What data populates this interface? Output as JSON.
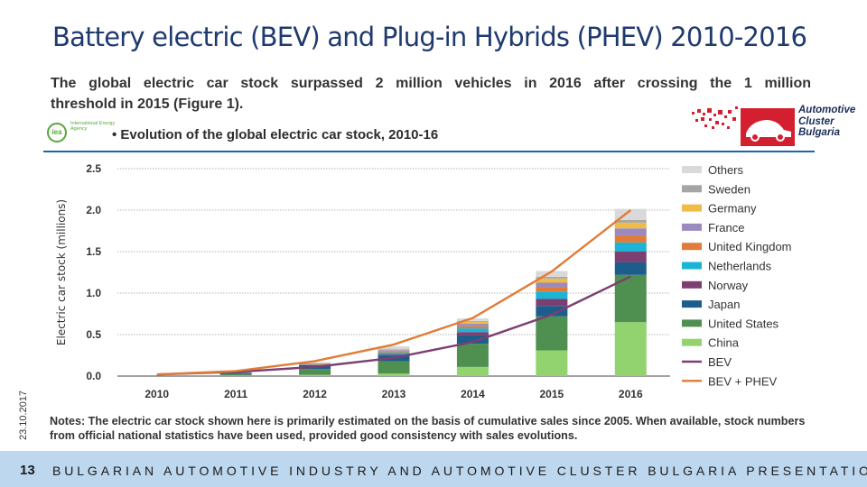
{
  "slide": {
    "title": "Battery electric (BEV) and Plug-in Hybrids (PHEV) 2010-2016",
    "intro_line1": "The global electric car stock surpassed 2 million vehicles in 2016 after crossing the 1 million",
    "intro_line2": "threshold in 2015 (Figure 1).",
    "figure_title": "• Evolution of the global electric car stock, 2010-16",
    "iea_logo": {
      "icon": "iea-logo",
      "mark": "iea",
      "text": "International Energy Agency"
    },
    "brand_logo": {
      "icon": "automotive-cluster-car-logo",
      "line1": "Automotive",
      "line2": "Cluster",
      "line3": "Bulgaria"
    },
    "date": "23.10.2017",
    "notes": "Notes: The electric car stock shown here is primarily estimated on the basis of cumulative sales since 2005. When available, stock numbers from official national statistics have been used, provided good consistency with sales evolutions.",
    "footer_number": "13",
    "footer_text": "BULGARIAN AUTOMOTIVE INDUSTRY AND AUTOMOTIVE CLUSTER BULGARIA PRESENTATION",
    "colors": {
      "title": "#1f3a6e",
      "rule": "#1b64b0",
      "footer_bg": "#bdd7ee"
    }
  },
  "chart_data": {
    "type": "bar",
    "stacked": true,
    "title": "Evolution of the global electric car stock, 2010-16",
    "ylabel": "Electric car stock (millions)",
    "xlabel": "",
    "categories": [
      "2010",
      "2011",
      "2012",
      "2013",
      "2014",
      "2015",
      "2016"
    ],
    "ylim": [
      0,
      2.5
    ],
    "yticks": [
      "0.0",
      "0.5",
      "1.0",
      "1.5",
      "2.0",
      "2.5"
    ],
    "grid": true,
    "legend_position": "right",
    "series": [
      {
        "name": "China",
        "color": "#92d26f",
        "values": [
          0.002,
          0.007,
          0.015,
          0.03,
          0.11,
          0.31,
          0.65
        ]
      },
      {
        "name": "United States",
        "color": "#4f8f4f",
        "values": [
          0.003,
          0.018,
          0.07,
          0.15,
          0.28,
          0.41,
          0.57
        ]
      },
      {
        "name": "Japan",
        "color": "#1d5d8c",
        "values": [
          0.001,
          0.013,
          0.04,
          0.06,
          0.1,
          0.125,
          0.15
        ]
      },
      {
        "name": "Norway",
        "color": "#7b3f72",
        "values": [
          0.0005,
          0.002,
          0.007,
          0.02,
          0.04,
          0.085,
          0.13
        ]
      },
      {
        "name": "Netherlands",
        "color": "#1bb4d7",
        "values": [
          0.0002,
          0.001,
          0.004,
          0.025,
          0.045,
          0.09,
          0.11
        ]
      },
      {
        "name": "United Kingdom",
        "color": "#e07c38",
        "values": [
          0.0002,
          0.0012,
          0.005,
          0.01,
          0.025,
          0.05,
          0.085
        ]
      },
      {
        "name": "France",
        "color": "#9a8abf",
        "values": [
          0.0002,
          0.003,
          0.01,
          0.018,
          0.03,
          0.055,
          0.085
        ]
      },
      {
        "name": "Germany",
        "color": "#efbc47",
        "values": [
          0.0004,
          0.002,
          0.005,
          0.012,
          0.025,
          0.05,
          0.07
        ]
      },
      {
        "name": "Sweden",
        "color": "#a5a5a5",
        "values": [
          0.0001,
          0.0002,
          0.001,
          0.004,
          0.01,
          0.02,
          0.03
        ]
      },
      {
        "name": "Others",
        "color": "#d9d9d9",
        "values": [
          0.0003,
          0.002,
          0.009,
          0.03,
          0.03,
          0.07,
          0.135
        ]
      }
    ],
    "line_series": [
      {
        "name": "BEV",
        "color": "#7b3f72",
        "values": [
          0.02,
          0.05,
          0.11,
          0.22,
          0.41,
          0.74,
          1.2
        ]
      },
      {
        "name": "BEV + PHEV",
        "color": "#e07c38",
        "values": [
          0.02,
          0.06,
          0.18,
          0.38,
          0.7,
          1.26,
          2.0
        ]
      }
    ],
    "legend_order": [
      "Others",
      "Sweden",
      "Germany",
      "France",
      "United Kingdom",
      "Netherlands",
      "Norway",
      "Japan",
      "United States",
      "China",
      "BEV",
      "BEV + PHEV"
    ]
  }
}
